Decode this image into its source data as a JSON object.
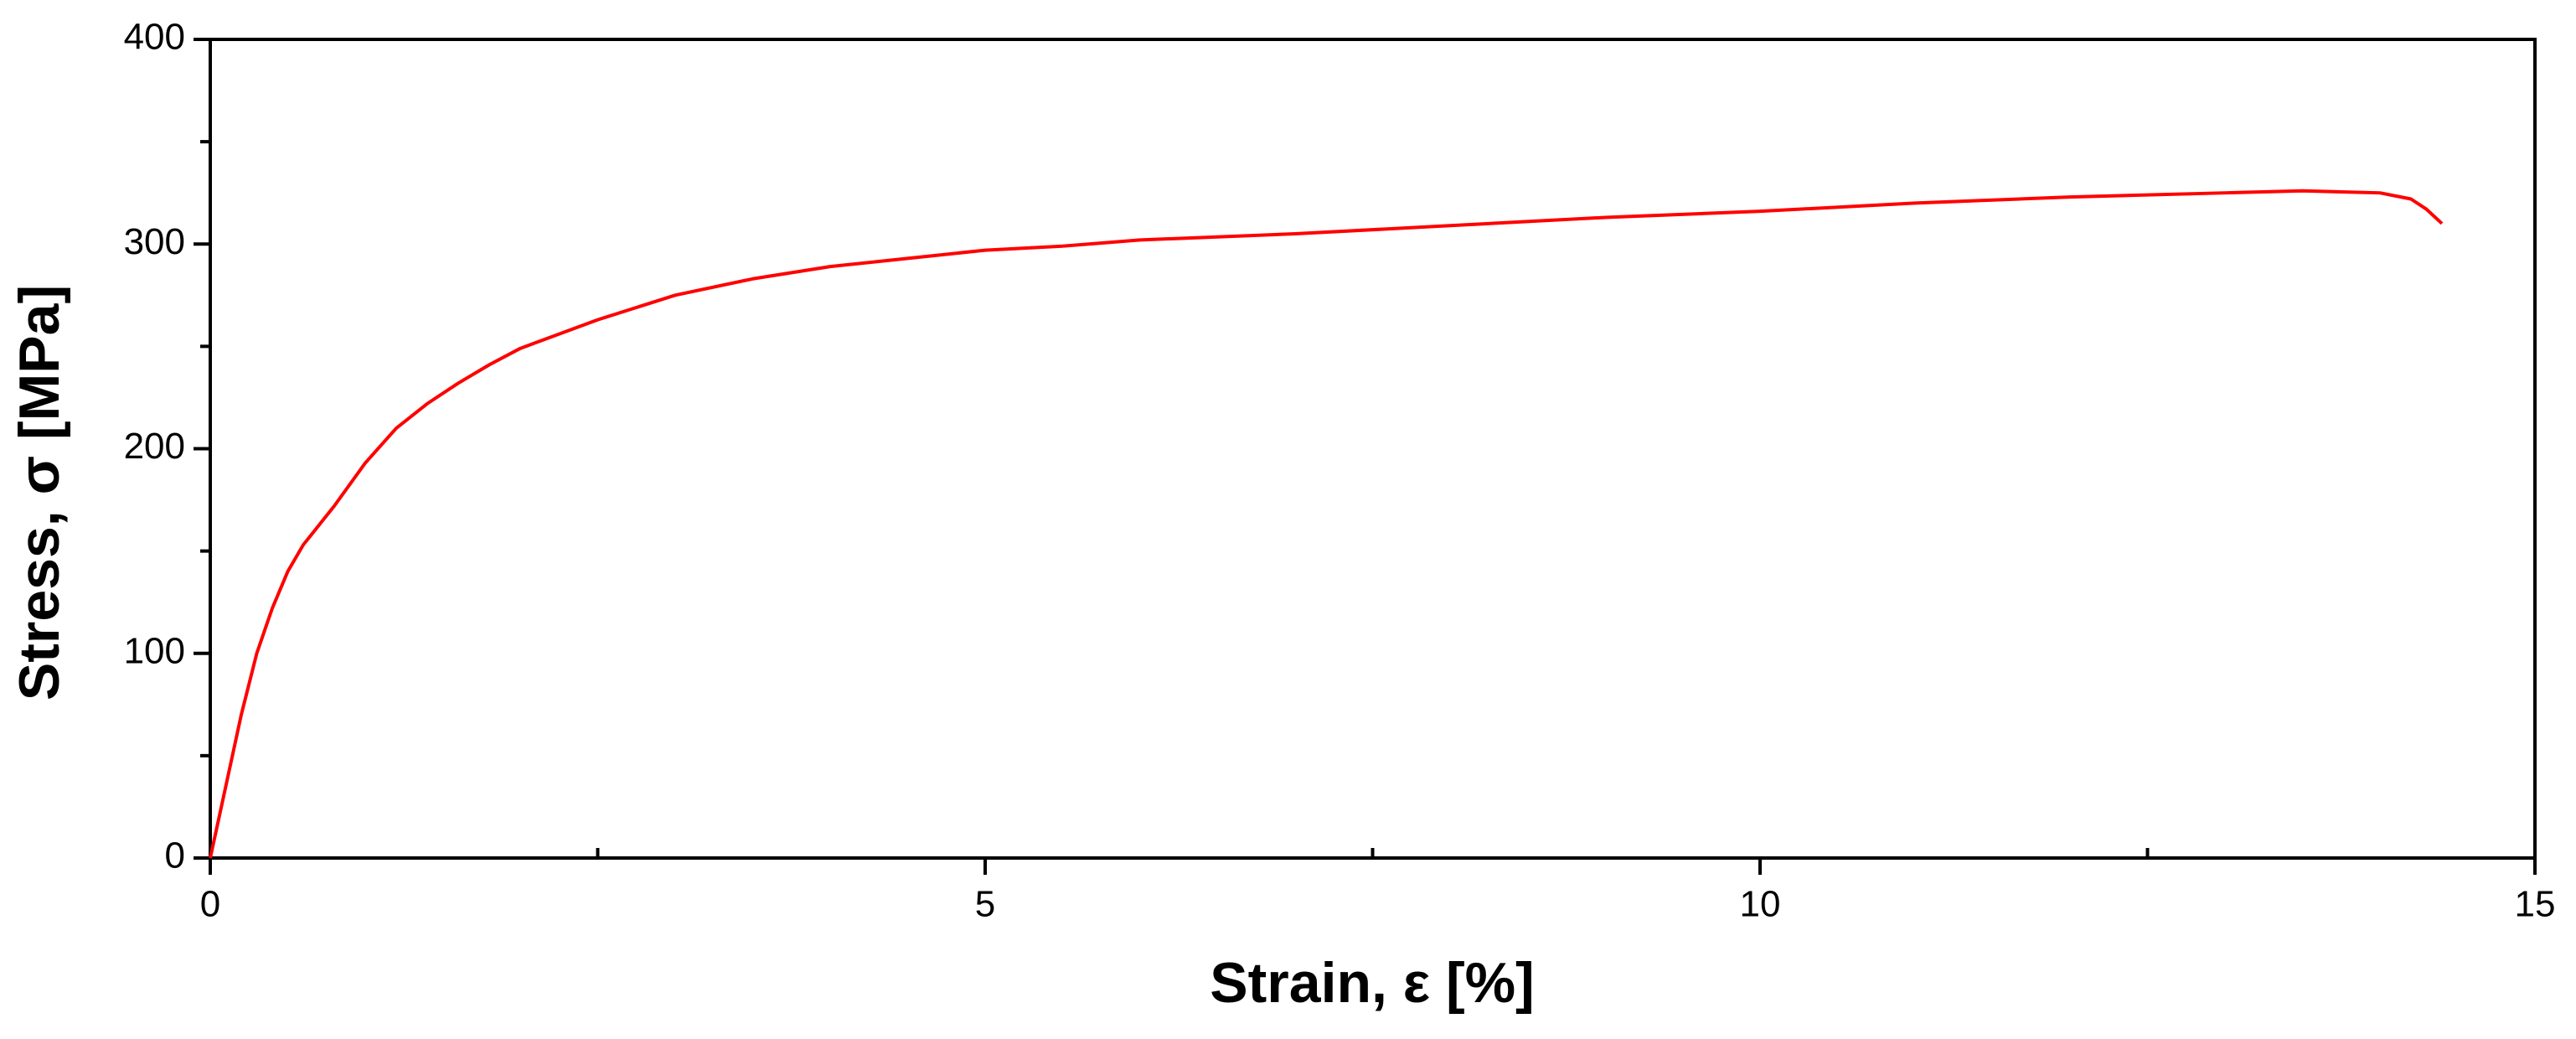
{
  "chart_data": {
    "type": "line",
    "x_label": "Strain, ε [%]",
    "y_label": "Stress, σ [MPa]",
    "x": [
      0,
      0.1,
      0.2,
      0.3,
      0.4,
      0.5,
      0.6,
      0.8,
      1.0,
      1.2,
      1.4,
      1.6,
      1.8,
      2.0,
      2.5,
      3.0,
      3.5,
      4.0,
      4.5,
      5.0,
      5.5,
      6,
      7,
      8,
      9,
      10,
      11,
      12,
      13,
      13.5,
      14,
      14.2,
      14.3,
      14.4
    ],
    "series": [
      {
        "color": "#ff0000",
        "values": [
          0,
          35,
          70,
          100,
          122,
          140,
          153,
          172,
          193,
          210,
          222,
          232,
          241,
          249,
          263,
          275,
          283,
          289,
          293,
          297,
          299,
          302,
          305,
          309,
          313,
          316,
          320,
          323,
          325,
          326,
          325,
          322,
          317,
          310
        ]
      }
    ],
    "xlim": [
      0,
      15
    ],
    "xticks": [
      0,
      5,
      10,
      15
    ],
    "xminorticks": [
      2.5,
      7.5,
      12.5
    ],
    "ylim": [
      0,
      400
    ],
    "yticks": [
      0,
      100,
      200,
      300,
      400
    ],
    "yminorticks": [
      50,
      150,
      250,
      350
    ],
    "grid": false
  }
}
